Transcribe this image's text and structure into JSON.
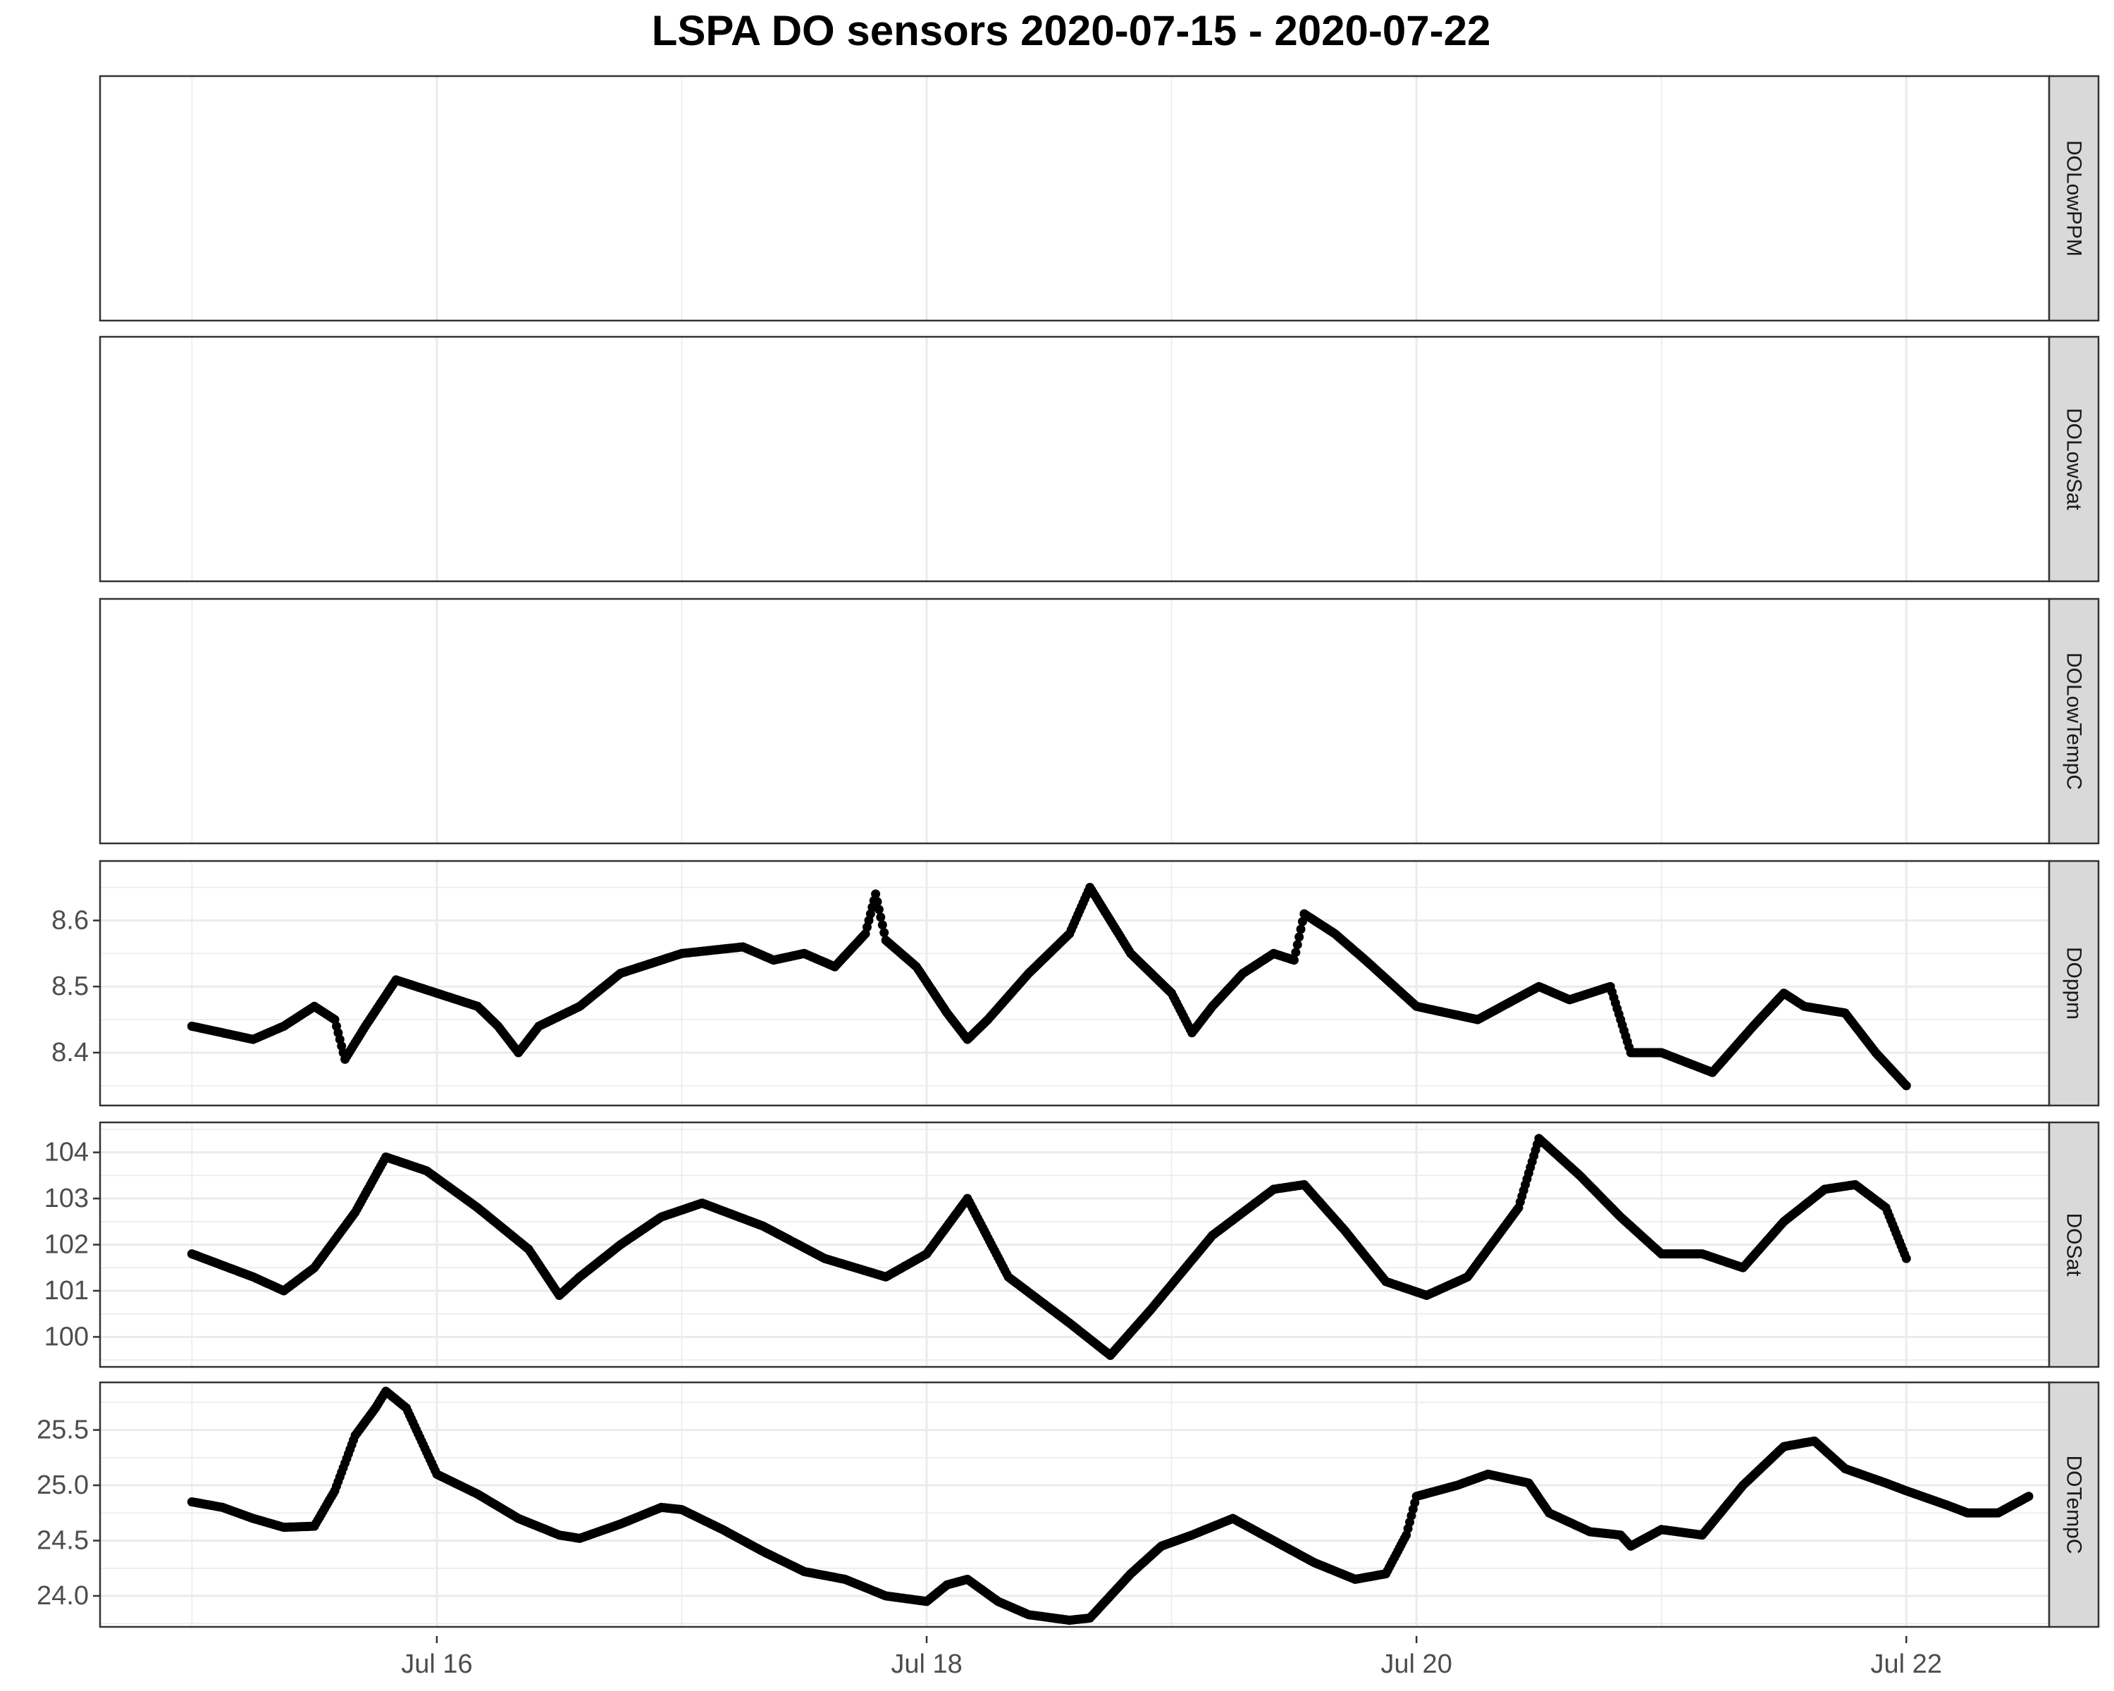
{
  "chart_data": {
    "type": "scatter",
    "title": "LSPA DO sensors 2020-07-15 - 2020-07-22",
    "xlabel": "",
    "ylabel": "",
    "x_axis": {
      "type": "datetime",
      "ticks": [
        {
          "date": "2020-07-16",
          "label": "Jul 16"
        },
        {
          "date": "2020-07-18",
          "label": "Jul 18"
        },
        {
          "date": "2020-07-20",
          "label": "Jul 20"
        },
        {
          "date": "2020-07-22",
          "label": "Jul 22"
        }
      ],
      "minor_ticks": [
        "2020-07-15",
        "2020-07-17",
        "2020-07-19",
        "2020-07-21"
      ],
      "range": [
        "2020-07-14 15:00",
        "2020-07-22 14:00"
      ]
    },
    "grid": true,
    "point_color": "#000000",
    "panels": [
      {
        "name": "DOLowPPM",
        "ylim": null,
        "yticks": [],
        "series": []
      },
      {
        "name": "DOLowSat",
        "ylim": null,
        "yticks": [],
        "series": []
      },
      {
        "name": "DOLowTempC",
        "ylim": null,
        "yticks": [],
        "series": []
      },
      {
        "name": "DOppm",
        "ylim": [
          8.32,
          8.69
        ],
        "yticks": [
          8.4,
          8.5,
          8.6
        ],
        "ytick_labels": [
          "8.4",
          "8.5",
          "8.6"
        ],
        "series": [
          [
            "2020-07-15 00:00",
            8.44
          ],
          [
            "2020-07-15 03:00",
            8.43
          ],
          [
            "2020-07-15 06:00",
            8.42
          ],
          [
            "2020-07-15 09:00",
            8.44
          ],
          [
            "2020-07-15 12:00",
            8.47
          ],
          [
            "2020-07-15 14:00",
            8.45
          ],
          [
            "2020-07-15 15:00",
            8.39
          ],
          [
            "2020-07-15 17:00",
            8.44
          ],
          [
            "2020-07-15 20:00",
            8.51
          ],
          [
            "2020-07-16 00:00",
            8.49
          ],
          [
            "2020-07-16 04:00",
            8.47
          ],
          [
            "2020-07-16 06:00",
            8.44
          ],
          [
            "2020-07-16 08:00",
            8.4
          ],
          [
            "2020-07-16 10:00",
            8.44
          ],
          [
            "2020-07-16 14:00",
            8.47
          ],
          [
            "2020-07-16 18:00",
            8.52
          ],
          [
            "2020-07-17 00:00",
            8.55
          ],
          [
            "2020-07-17 06:00",
            8.56
          ],
          [
            "2020-07-17 09:00",
            8.54
          ],
          [
            "2020-07-17 12:00",
            8.55
          ],
          [
            "2020-07-17 15:00",
            8.53
          ],
          [
            "2020-07-17 18:00",
            8.58
          ],
          [
            "2020-07-17 19:00",
            8.64
          ],
          [
            "2020-07-17 20:00",
            8.57
          ],
          [
            "2020-07-17 23:00",
            8.53
          ],
          [
            "2020-07-18 02:00",
            8.46
          ],
          [
            "2020-07-18 04:00",
            8.42
          ],
          [
            "2020-07-18 06:00",
            8.45
          ],
          [
            "2020-07-18 10:00",
            8.52
          ],
          [
            "2020-07-18 14:00",
            8.58
          ],
          [
            "2020-07-18 16:00",
            8.65
          ],
          [
            "2020-07-18 20:00",
            8.55
          ],
          [
            "2020-07-19 00:00",
            8.49
          ],
          [
            "2020-07-19 02:00",
            8.43
          ],
          [
            "2020-07-19 04:00",
            8.47
          ],
          [
            "2020-07-19 07:00",
            8.52
          ],
          [
            "2020-07-19 10:00",
            8.55
          ],
          [
            "2020-07-19 12:00",
            8.54
          ],
          [
            "2020-07-19 13:00",
            8.61
          ],
          [
            "2020-07-19 16:00",
            8.58
          ],
          [
            "2020-07-19 19:00",
            8.54
          ],
          [
            "2020-07-20 00:00",
            8.47
          ],
          [
            "2020-07-20 06:00",
            8.45
          ],
          [
            "2020-07-20 12:00",
            8.5
          ],
          [
            "2020-07-20 15:00",
            8.48
          ],
          [
            "2020-07-20 19:00",
            8.5
          ],
          [
            "2020-07-20 21:00",
            8.4
          ],
          [
            "2020-07-21 00:00",
            8.4
          ],
          [
            "2020-07-21 05:00",
            8.37
          ],
          [
            "2020-07-21 09:00",
            8.44
          ],
          [
            "2020-07-21 12:00",
            8.49
          ],
          [
            "2020-07-21 14:00",
            8.47
          ],
          [
            "2020-07-21 18:00",
            8.46
          ],
          [
            "2020-07-21 21:00",
            8.4
          ],
          [
            "2020-07-22 00:00",
            8.35
          ]
        ]
      },
      {
        "name": "DOSat",
        "ylim": [
          99.35,
          104.65
        ],
        "yticks": [
          100,
          101,
          102,
          103,
          104
        ],
        "ytick_labels": [
          "100",
          "101",
          "102",
          "103",
          "104"
        ],
        "series": [
          [
            "2020-07-15 00:00",
            101.8
          ],
          [
            "2020-07-15 06:00",
            101.3
          ],
          [
            "2020-07-15 09:00",
            101.0
          ],
          [
            "2020-07-15 12:00",
            101.5
          ],
          [
            "2020-07-15 16:00",
            102.7
          ],
          [
            "2020-07-15 19:00",
            103.9
          ],
          [
            "2020-07-15 23:00",
            103.6
          ],
          [
            "2020-07-16 04:00",
            102.8
          ],
          [
            "2020-07-16 09:00",
            101.9
          ],
          [
            "2020-07-16 12:00",
            100.9
          ],
          [
            "2020-07-16 14:00",
            101.3
          ],
          [
            "2020-07-16 18:00",
            102.0
          ],
          [
            "2020-07-16 22:00",
            102.6
          ],
          [
            "2020-07-17 02:00",
            102.9
          ],
          [
            "2020-07-17 08:00",
            102.4
          ],
          [
            "2020-07-17 14:00",
            101.7
          ],
          [
            "2020-07-17 20:00",
            101.3
          ],
          [
            "2020-07-18 00:00",
            101.8
          ],
          [
            "2020-07-18 04:00",
            103.0
          ],
          [
            "2020-07-18 08:00",
            101.3
          ],
          [
            "2020-07-18 14:00",
            100.3
          ],
          [
            "2020-07-18 18:00",
            99.6
          ],
          [
            "2020-07-18 22:00",
            100.6
          ],
          [
            "2020-07-19 04:00",
            102.2
          ],
          [
            "2020-07-19 10:00",
            103.2
          ],
          [
            "2020-07-19 13:00",
            103.3
          ],
          [
            "2020-07-19 17:00",
            102.3
          ],
          [
            "2020-07-19 21:00",
            101.2
          ],
          [
            "2020-07-20 01:00",
            100.9
          ],
          [
            "2020-07-20 05:00",
            101.3
          ],
          [
            "2020-07-20 10:00",
            102.8
          ],
          [
            "2020-07-20 12:00",
            104.3
          ],
          [
            "2020-07-20 16:00",
            103.5
          ],
          [
            "2020-07-20 20:00",
            102.6
          ],
          [
            "2020-07-21 00:00",
            101.8
          ],
          [
            "2020-07-21 04:00",
            101.8
          ],
          [
            "2020-07-21 08:00",
            101.5
          ],
          [
            "2020-07-21 12:00",
            102.5
          ],
          [
            "2020-07-21 16:00",
            103.2
          ],
          [
            "2020-07-21 19:00",
            103.3
          ],
          [
            "2020-07-21 22:00",
            102.8
          ],
          [
            "2020-07-22 00:00",
            101.7
          ]
        ]
      },
      {
        "name": "DOTempC",
        "ylim": [
          23.72,
          25.93
        ],
        "yticks": [
          24.0,
          24.5,
          25.0,
          25.5
        ],
        "ytick_labels": [
          "24.0",
          "24.5",
          "25.0",
          "25.5"
        ],
        "series": [
          [
            "2020-07-15 00:00",
            24.85
          ],
          [
            "2020-07-15 03:00",
            24.8
          ],
          [
            "2020-07-15 06:00",
            24.7
          ],
          [
            "2020-07-15 09:00",
            24.62
          ],
          [
            "2020-07-15 12:00",
            24.63
          ],
          [
            "2020-07-15 14:00",
            24.95
          ],
          [
            "2020-07-15 16:00",
            25.45
          ],
          [
            "2020-07-15 18:00",
            25.7
          ],
          [
            "2020-07-15 19:00",
            25.85
          ],
          [
            "2020-07-15 21:00",
            25.7
          ],
          [
            "2020-07-16 00:00",
            25.1
          ],
          [
            "2020-07-16 04:00",
            24.92
          ],
          [
            "2020-07-16 08:00",
            24.7
          ],
          [
            "2020-07-16 12:00",
            24.55
          ],
          [
            "2020-07-16 14:00",
            24.52
          ],
          [
            "2020-07-16 18:00",
            24.65
          ],
          [
            "2020-07-16 22:00",
            24.8
          ],
          [
            "2020-07-17 00:00",
            24.78
          ],
          [
            "2020-07-17 04:00",
            24.6
          ],
          [
            "2020-07-17 08:00",
            24.4
          ],
          [
            "2020-07-17 12:00",
            24.22
          ],
          [
            "2020-07-17 16:00",
            24.15
          ],
          [
            "2020-07-17 20:00",
            24.0
          ],
          [
            "2020-07-18 00:00",
            23.95
          ],
          [
            "2020-07-18 02:00",
            24.1
          ],
          [
            "2020-07-18 04:00",
            24.15
          ],
          [
            "2020-07-18 07:00",
            23.95
          ],
          [
            "2020-07-18 10:00",
            23.83
          ],
          [
            "2020-07-18 14:00",
            23.78
          ],
          [
            "2020-07-18 16:00",
            23.8
          ],
          [
            "2020-07-18 20:00",
            24.2
          ],
          [
            "2020-07-18 23:00",
            24.45
          ],
          [
            "2020-07-19 02:00",
            24.55
          ],
          [
            "2020-07-19 06:00",
            24.7
          ],
          [
            "2020-07-19 10:00",
            24.5
          ],
          [
            "2020-07-19 14:00",
            24.3
          ],
          [
            "2020-07-19 18:00",
            24.15
          ],
          [
            "2020-07-19 21:00",
            24.2
          ],
          [
            "2020-07-19 23:00",
            24.55
          ],
          [
            "2020-07-20 00:00",
            24.9
          ],
          [
            "2020-07-20 04:00",
            25.0
          ],
          [
            "2020-07-20 07:00",
            25.1
          ],
          [
            "2020-07-20 11:00",
            25.02
          ],
          [
            "2020-07-20 13:00",
            24.75
          ],
          [
            "2020-07-20 17:00",
            24.58
          ],
          [
            "2020-07-20 20:00",
            24.55
          ],
          [
            "2020-07-20 21:00",
            24.45
          ],
          [
            "2020-07-21 00:00",
            24.6
          ],
          [
            "2020-07-21 04:00",
            24.55
          ],
          [
            "2020-07-21 08:00",
            25.0
          ],
          [
            "2020-07-21 12:00",
            25.35
          ],
          [
            "2020-07-21 15:00",
            25.4
          ],
          [
            "2020-07-21 18:00",
            25.15
          ],
          [
            "2020-07-21 22:00",
            25.02
          ],
          [
            "2020-07-22 00:00",
            24.95
          ],
          [
            "2020-07-22 04:00",
            24.82
          ],
          [
            "2020-07-22 06:00",
            24.75
          ],
          [
            "2020-07-22 09:00",
            24.75
          ],
          [
            "2020-07-22 12:00",
            24.9
          ]
        ]
      }
    ]
  }
}
